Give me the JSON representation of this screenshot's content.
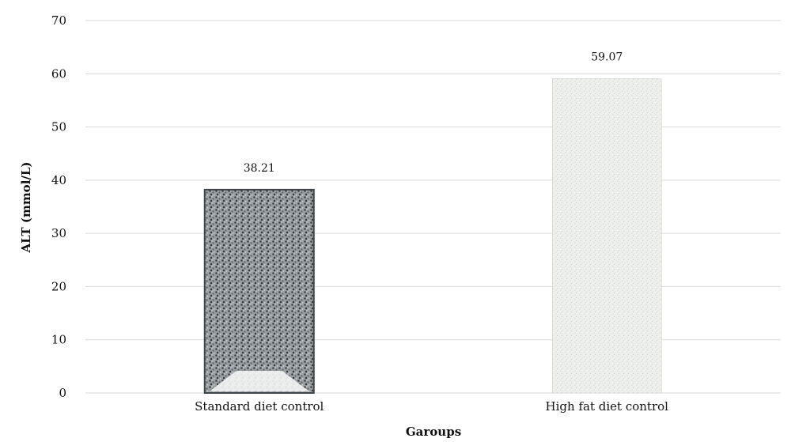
{
  "chart_data": {
    "type": "bar",
    "categories": [
      "Standard diet control",
      "High fat diet control"
    ],
    "values": [
      38.21,
      59.07
    ],
    "data_labels": [
      "38.21",
      "59.07"
    ],
    "xlabel": "Garoups",
    "ylabel": "ALT (mmol/L)",
    "ylim": [
      0,
      70
    ],
    "yticks": [
      0,
      10,
      20,
      30,
      40,
      50,
      60,
      70
    ],
    "grid": true,
    "legend": "none",
    "colors": {
      "bar1_fill": "#8c9196",
      "bar1_dark": "#3f4448",
      "bar2_fill": "#e9ece8",
      "bar2_dark": "#c9cdc8",
      "grid": "#d9d9d9"
    }
  }
}
